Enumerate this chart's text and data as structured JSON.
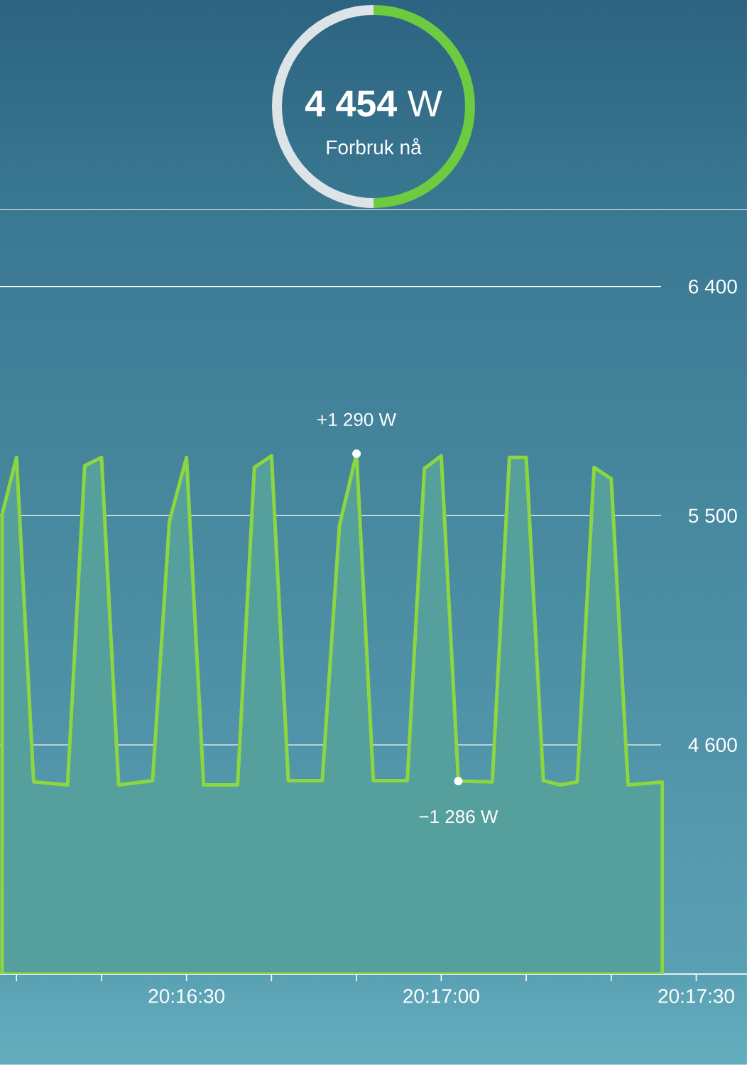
{
  "chart_data": {
    "type": "area",
    "title": "**4 454** W",
    "subtitle": "Forbruk nå",
    "x": [
      20.26897,
      20.26944,
      20.27,
      20.27111,
      20.27167,
      20.27222,
      20.27278,
      20.27389,
      20.27444,
      20.275,
      20.27556,
      20.27667,
      20.27722,
      20.27778,
      20.27833,
      20.27944,
      20.28,
      20.28056,
      20.28111,
      20.28222,
      20.28278,
      20.28333,
      20.28389,
      20.285,
      20.28556,
      20.28611,
      20.28667,
      20.28722,
      20.28778,
      20.28833,
      20.28889,
      20.28944,
      20.29056
    ],
    "values": [
      5506,
      5729,
      4455,
      4443,
      5696,
      5729,
      4443,
      4460,
      5478,
      5729,
      4443,
      4443,
      5690,
      5735,
      4460,
      4460,
      5461,
      5744,
      4460,
      4460,
      5685,
      5735,
      4458,
      4455,
      5729,
      5729,
      4460,
      4443,
      4455,
      5690,
      5645,
      4443,
      4454
    ],
    "color": "#55a09d",
    "xlim": [
      20.2689,
      20.29333
    ],
    "xticks": [
      {
        "value": 20.26944,
        "label": null
      },
      {
        "value": 20.27222,
        "label": null
      },
      {
        "value": 20.275,
        "label": "20:16:30"
      },
      {
        "value": 20.27778,
        "label": null
      },
      {
        "value": 20.28056,
        "label": null
      },
      {
        "value": 20.28333,
        "label": "20:17:00"
      },
      {
        "value": 20.28611,
        "label": null
      },
      {
        "value": 20.28889,
        "label": null
      },
      {
        "value": 20.29167,
        "label": "20:17:30"
      }
    ],
    "ylim": [
      3700,
      6700
    ],
    "yticks": [
      {
        "value": 4600,
        "label": "4 600"
      },
      {
        "value": 5500,
        "label": "5 500"
      },
      {
        "value": 6400,
        "label": "6 400"
      }
    ],
    "grid": "y",
    "annotations": [
      {
        "text": "+1 290 W",
        "x": 20.28056,
        "y": 5744
      },
      {
        "text": "−1 286 W",
        "x": 20.28389,
        "y": 4458
      }
    ]
  }
}
